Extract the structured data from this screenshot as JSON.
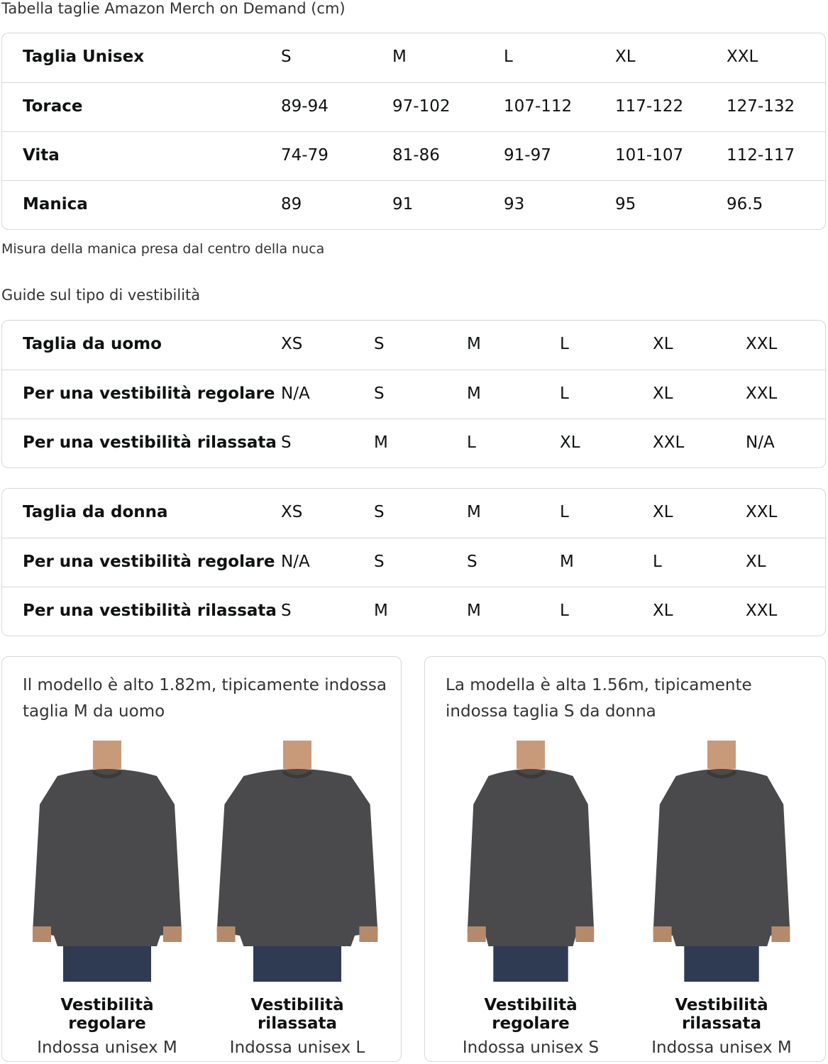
{
  "title": "Tabella taglie Amazon Merch on Demand (cm)",
  "unisex_table": [
    [
      "Taglia Unisex",
      "S",
      "M",
      "L",
      "XL",
      "XXL"
    ],
    [
      "Torace",
      "89-94",
      "97-102",
      "107-112",
      "117-122",
      "127-132"
    ],
    [
      "Vita",
      "74-79",
      "81-86",
      "91-97",
      "101-107",
      "112-117"
    ],
    [
      "Manica",
      "89",
      "91",
      "93",
      "95",
      "96.5"
    ]
  ],
  "sleeve_note": "Misura della manica presa dal centro della nuca",
  "fit_guide_title": "Guide sul tipo di vestibilità",
  "men_table": [
    [
      "Taglia da uomo",
      "XS",
      "S",
      "M",
      "L",
      "XL",
      "XXL"
    ],
    [
      "Per una vestibilità regolare",
      "N/A",
      "S",
      "M",
      "L",
      "XL",
      "XXL"
    ],
    [
      "Per una vestibilità rilassata",
      "S",
      "M",
      "L",
      "XL",
      "XXL",
      "N/A"
    ]
  ],
  "women_table": [
    [
      "Taglia da donna",
      "XS",
      "S",
      "M",
      "L",
      "XL",
      "XXL"
    ],
    [
      "Per una vestibilità regolare",
      "N/A",
      "S",
      "S",
      "M",
      "L",
      "XL"
    ],
    [
      "Per una vestibilità rilassata",
      "S",
      "M",
      "M",
      "L",
      "XL",
      "XXL"
    ]
  ],
  "cards": [
    {
      "text": "Il modello è alto 1.82m, tipicamente indossa taglia M da uomo",
      "figures": [
        {
          "fit": "Vestibilità regolare",
          "wears": "Indossa unisex M"
        },
        {
          "fit": "Vestibilità rilassata",
          "wears": "Indossa unisex L"
        }
      ]
    },
    {
      "text": "La modella è alta 1.56m, tipicamente indossa taglia S da donna",
      "figures": [
        {
          "fit": "Vestibilità regolare",
          "wears": "Indossa unisex S"
        },
        {
          "fit": "Vestibilità rilassata",
          "wears": "Indossa unisex M"
        }
      ]
    }
  ],
  "colors": {
    "border": "#d5d9d9",
    "sweatshirt": "#4a4a4c",
    "jeans": "#2f3b52"
  }
}
